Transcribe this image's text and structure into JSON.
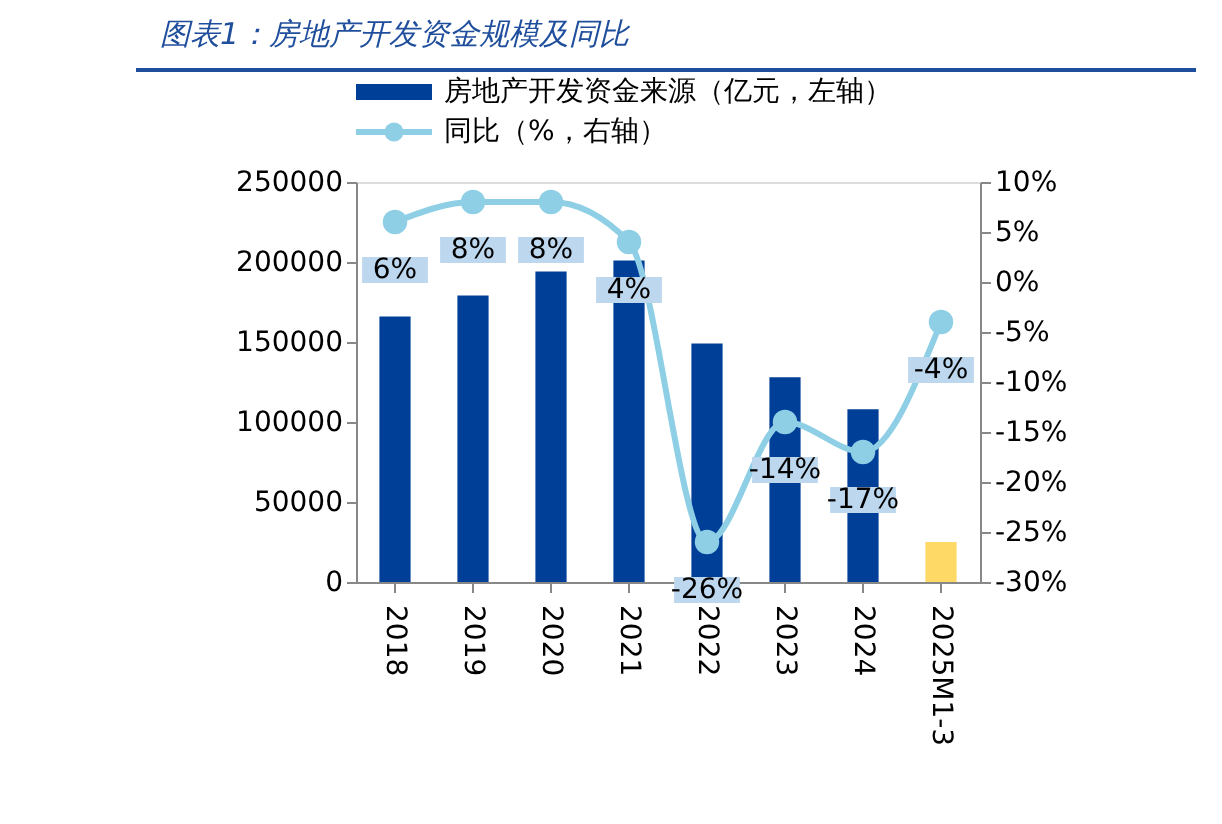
{
  "chart_data": {
    "type": "bar",
    "title": "图表1：房地产开发资金规模及同比",
    "categories": [
      "2018",
      "2019",
      "2020",
      "2021",
      "2022",
      "2023",
      "2024",
      "2025M1-3"
    ],
    "series": [
      {
        "name": "房地产开发资金来源（亿元，左轴）",
        "color": "#003f98",
        "colors": [
          "#003f98",
          "#003f98",
          "#003f98",
          "#003f98",
          "#003f98",
          "#003f98",
          "#003f98",
          "#ffd966"
        ],
        "values": [
          166000,
          179000,
          194000,
          201000,
          149000,
          128000,
          108000,
          25000
        ]
      },
      {
        "name": "同比（%，右轴）",
        "type": "line",
        "axis": "y2",
        "color": "#8ecfe6",
        "marker": "circle",
        "values": [
          6,
          8,
          8,
          4,
          -26,
          -14,
          -17,
          -4
        ],
        "value_labels": [
          "6%",
          "8%",
          "8%",
          "4%",
          "-26%",
          "-14%",
          "-17%",
          "-4%"
        ]
      }
    ],
    "ylim": [
      0,
      250000
    ],
    "yticks": [
      0,
      50000,
      100000,
      150000,
      200000,
      250000
    ],
    "y2lim": [
      -30,
      10
    ],
    "y2ticks": [
      {
        "value": -30,
        "label": "-30%"
      },
      {
        "value": -25,
        "label": "-25%"
      },
      {
        "value": -20,
        "label": "-20%"
      },
      {
        "value": -15,
        "label": "-15%"
      },
      {
        "value": -10,
        "label": "-10%"
      },
      {
        "value": -5,
        "label": "-5%"
      },
      {
        "value": 0,
        "label": "0%"
      },
      {
        "value": 5,
        "label": "5%"
      },
      {
        "value": 10,
        "label": "10%"
      }
    ],
    "grid": false,
    "legend": "top"
  }
}
